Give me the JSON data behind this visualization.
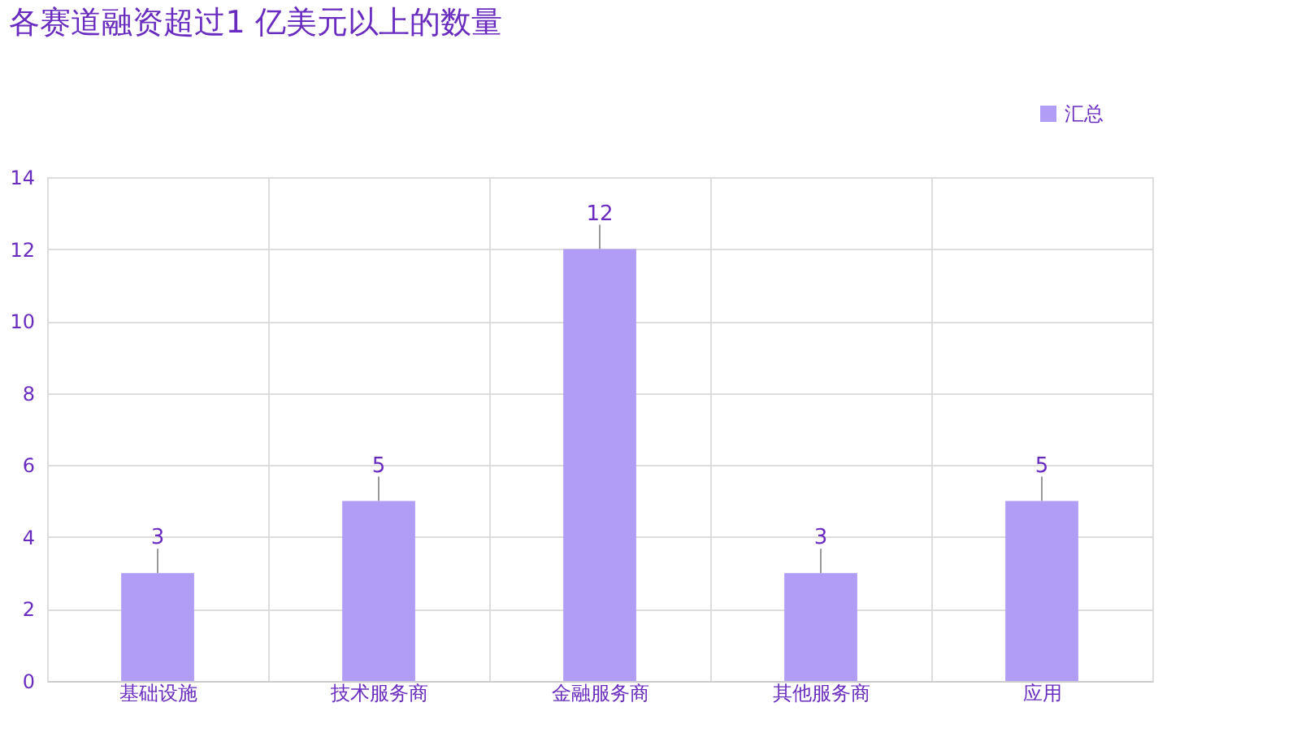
{
  "chart_data": {
    "type": "bar",
    "title": "各赛道融资超过1 亿美元以上的数量",
    "categories": [
      "基础设施",
      "技术服务商",
      "金融服务商",
      "其他服务商",
      "应用"
    ],
    "series": [
      {
        "name": "汇总",
        "color": "#b19cf6",
        "values": [
          3,
          5,
          12,
          3,
          5
        ]
      }
    ],
    "ylim": [
      0,
      14
    ],
    "yticks": [
      0,
      2,
      4,
      6,
      8,
      10,
      12,
      14
    ],
    "grid": true,
    "legend": "top right",
    "data_labels": true
  }
}
